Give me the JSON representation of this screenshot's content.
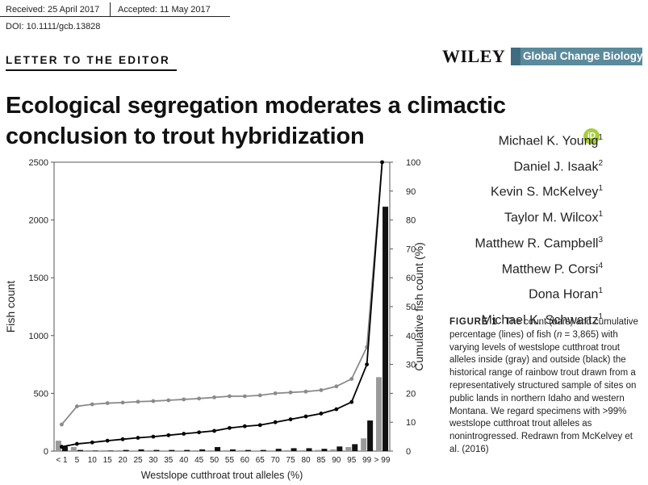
{
  "header": {
    "received": "Received: 25 April 2017",
    "accepted": "Accepted: 11 May 2017",
    "doi": "DOI: 10.1111/gcb.13828",
    "section": "LETTER TO THE EDITOR",
    "publisher": "WILEY",
    "journal": "Global Change Biology"
  },
  "article": {
    "title": "Ecological segregation moderates a climactic conclusion to trout hybridization",
    "orcid_badge": "iD",
    "authors": [
      {
        "name": "Michael K. Young",
        "aff": "1"
      },
      {
        "name": "Daniel J. Isaak",
        "aff": "2"
      },
      {
        "name": "Kevin S. McKelvey",
        "aff": "1"
      },
      {
        "name": "Taylor M. Wilcox",
        "aff": "1"
      },
      {
        "name": "Matthew R. Campbell",
        "aff": "3"
      },
      {
        "name": "Matthew P. Corsi",
        "aff": "4"
      },
      {
        "name": "Dona Horan",
        "aff": "1"
      },
      {
        "name": "Michael K. Schwartz",
        "aff": "1"
      }
    ]
  },
  "figure_caption": {
    "label": "FIGURE 1",
    "text_a": "The count (bars) and cumulative percentage (lines) of fish (",
    "n_symbol": "n",
    "text_b": " = 3,865) with varying levels of westslope cutthroat trout alleles inside (gray) and outside (black) the historical range of rainbow trout drawn from a representatively structured sample of sites on public lands in northern Idaho and western Montana. We regard specimens with >99% westslope cutthroat trout alleles as nonintrogressed. Redrawn from McKelvey et al. (2016)"
  },
  "chart_data": {
    "type": "bar",
    "xlabel": "Westslope cutthroat trout alleles (%)",
    "ylabel": "Fish count",
    "y2label": "Cumulative fish count (%)",
    "ylim": [
      0,
      2500
    ],
    "y2lim": [
      0,
      100
    ],
    "yticks": [
      0,
      500,
      1000,
      1500,
      2000,
      2500
    ],
    "y2ticks": [
      0,
      10,
      20,
      30,
      40,
      50,
      60,
      70,
      80,
      90,
      100
    ],
    "categories": [
      "< 1",
      "5",
      "10",
      "15",
      "20",
      "25",
      "30",
      "35",
      "40",
      "45",
      "50",
      "55",
      "60",
      "65",
      "70",
      "75",
      "80",
      "85",
      "90",
      "95",
      "99",
      "> 99"
    ],
    "series": [
      {
        "name": "Inside (gray) counts",
        "kind": "bar",
        "color": "#9a9a9a",
        "values": [
          90,
          35,
          8,
          8,
          8,
          6,
          8,
          6,
          6,
          8,
          8,
          8,
          8,
          6,
          6,
          8,
          8,
          10,
          15,
          35,
          110,
          640
        ]
      },
      {
        "name": "Outside (black) counts",
        "kind": "bar",
        "color": "#111111",
        "values": [
          40,
          10,
          5,
          5,
          10,
          15,
          10,
          10,
          10,
          15,
          35,
          15,
          10,
          10,
          20,
          25,
          25,
          20,
          40,
          60,
          265,
          2115
        ]
      },
      {
        "name": "Inside (gray) cumulative %",
        "kind": "line",
        "color": "#8a8a8a",
        "values": [
          9.2,
          15.5,
          16.2,
          16.6,
          16.8,
          17.1,
          17.3,
          17.6,
          17.9,
          18.2,
          18.6,
          19.0,
          19.0,
          19.3,
          20.0,
          20.3,
          20.6,
          21.1,
          22.4,
          25.0,
          36.0,
          100
        ]
      },
      {
        "name": "Outside (black) cumulative %",
        "kind": "line",
        "color": "#000000",
        "values": [
          1.5,
          2.5,
          3.0,
          3.6,
          4.1,
          4.6,
          5.0,
          5.5,
          6.0,
          6.5,
          7.0,
          8.0,
          8.6,
          9.0,
          10.0,
          11.0,
          12.0,
          13.0,
          14.5,
          17.0,
          30.0,
          100
        ]
      }
    ]
  }
}
